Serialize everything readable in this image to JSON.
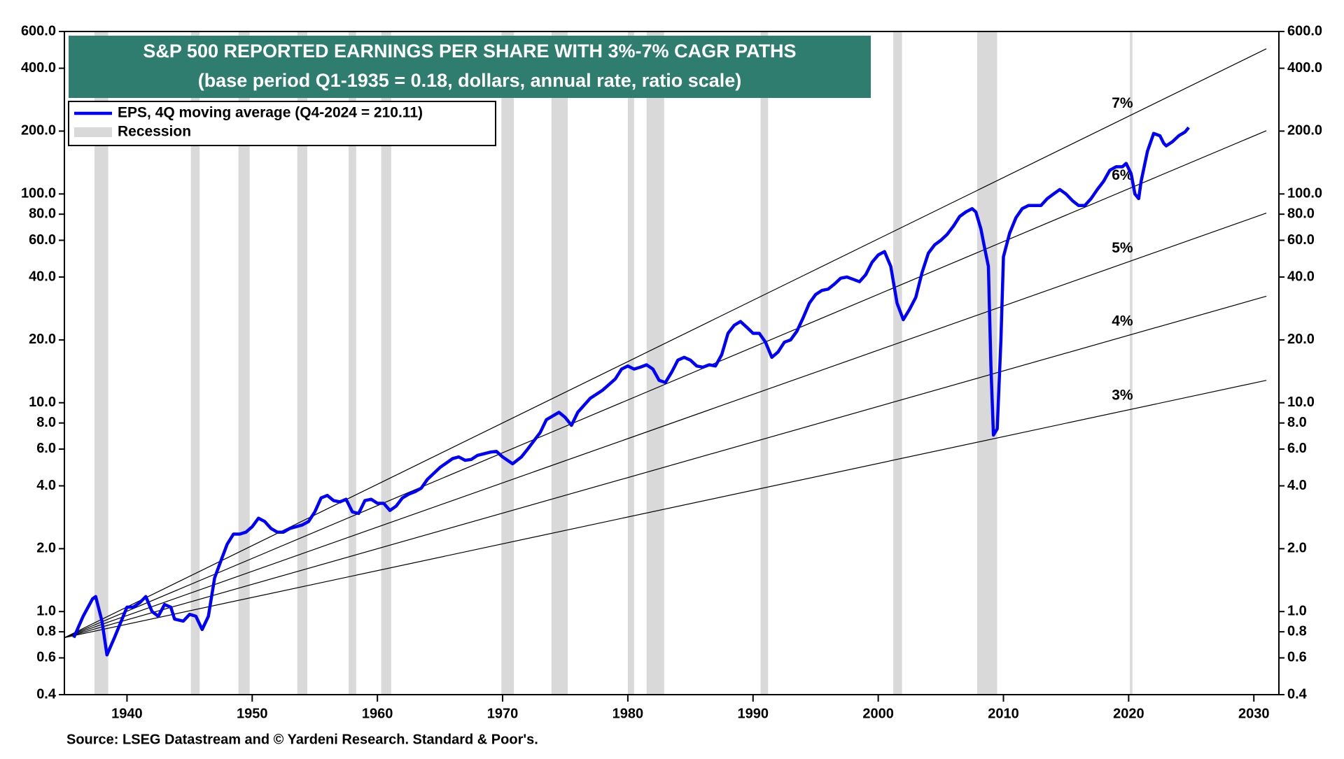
{
  "chart_data": {
    "type": "line",
    "title": "S&P 500 REPORTED EARNINGS PER SHARE WITH 3%-7% CAGR PATHS",
    "subtitle": "(base period Q1-1935 = 0.18, dollars, annual rate, ratio scale)",
    "source": "Source: LSEG Datastream and © Yardeni Research. Standard & Poor's.",
    "log_scale": true,
    "xlim": [
      1935,
      2032
    ],
    "xticks": [
      1940,
      1950,
      1960,
      1970,
      1980,
      1990,
      2000,
      2010,
      2020,
      2030
    ],
    "ylim": [
      0.4,
      600
    ],
    "yticks": [
      0.4,
      0.6,
      0.8,
      {
        "value": 1,
        "label": "1.0"
      },
      {
        "value": 2,
        "label": "2.0"
      },
      {
        "value": 4,
        "label": "4.0"
      },
      {
        "value": 6,
        "label": "6.0"
      },
      {
        "value": 8,
        "label": "8.0"
      },
      {
        "value": 10,
        "label": "10.0"
      },
      {
        "value": 20,
        "label": "20.0"
      },
      {
        "value": 40,
        "label": "40.0"
      },
      {
        "value": 60,
        "label": "60.0"
      },
      {
        "value": 80,
        "label": "80.0"
      },
      {
        "value": 100,
        "label": "100.0"
      },
      {
        "value": 200,
        "label": "200.0"
      },
      {
        "value": 400,
        "label": "400.0"
      },
      {
        "value": 600,
        "label": "600.0"
      }
    ],
    "recession_label": "Recession",
    "recession_color": "#d9d9d9",
    "recessions": [
      [
        1937.4,
        1938.5
      ],
      [
        1945.1,
        1945.8
      ],
      [
        1948.9,
        1949.8
      ],
      [
        1953.6,
        1954.4
      ],
      [
        1957.7,
        1958.3
      ],
      [
        1960.3,
        1961.1
      ],
      [
        1969.9,
        1970.9
      ],
      [
        1973.9,
        1975.2
      ],
      [
        1980.0,
        1980.5
      ],
      [
        1981.5,
        1982.9
      ],
      [
        1990.6,
        1991.2
      ],
      [
        2001.2,
        2001.9
      ],
      [
        2007.9,
        2009.5
      ],
      [
        2020.1,
        2020.3
      ]
    ],
    "series": [
      {
        "name": "EPS, 4Q moving average (Q4-2024 = 210.11)",
        "color": "#0000ff",
        "legend": true,
        "x": [
          1935.75,
          1936.5,
          1937.25,
          1937.5,
          1938.0,
          1938.4,
          1939.0,
          1940.0,
          1940.5,
          1941.0,
          1941.5,
          1942.0,
          1942.5,
          1943.0,
          1943.5,
          1943.8,
          1944.5,
          1945.0,
          1945.5,
          1946.0,
          1946.5,
          1947.0,
          1947.5,
          1948.0,
          1948.5,
          1949.0,
          1949.5,
          1950.0,
          1950.5,
          1951.0,
          1951.5,
          1952.0,
          1952.5,
          1953.0,
          1953.5,
          1954.0,
          1954.5,
          1955.0,
          1955.5,
          1956.0,
          1956.5,
          1957.0,
          1957.5,
          1958.0,
          1958.5,
          1959.0,
          1959.5,
          1960.0,
          1960.5,
          1961.0,
          1961.5,
          1962.0,
          1962.5,
          1963.0,
          1963.5,
          1964.0,
          1965.0,
          1966.0,
          1966.5,
          1967.0,
          1967.5,
          1968.0,
          1969.0,
          1969.5,
          1970.0,
          1970.8,
          1971.5,
          1972.0,
          1973.0,
          1973.5,
          1974.5,
          1975.0,
          1975.5,
          1976.0,
          1977.0,
          1978.0,
          1979.0,
          1979.5,
          1980.0,
          1980.5,
          1981.0,
          1981.5,
          1982.0,
          1982.5,
          1983.0,
          1983.5,
          1984.0,
          1984.5,
          1985.0,
          1985.5,
          1986.0,
          1986.5,
          1987.0,
          1987.5,
          1988.0,
          1988.5,
          1989.0,
          1989.5,
          1990.0,
          1990.5,
          1991.0,
          1991.5,
          1992.0,
          1992.5,
          1993.0,
          1993.5,
          1994.0,
          1994.5,
          1995.0,
          1995.5,
          1996.0,
          1996.5,
          1997.0,
          1997.5,
          1998.0,
          1998.5,
          1999.0,
          1999.5,
          2000.0,
          2000.5,
          2001.0,
          2001.5,
          2002.0,
          2002.5,
          2003.0,
          2003.5,
          2004.0,
          2004.5,
          2005.0,
          2005.5,
          2006.0,
          2006.5,
          2007.0,
          2007.5,
          2007.8,
          2008.2,
          2008.5,
          2008.8,
          2009.0,
          2009.2,
          2009.5,
          2009.8,
          2010.0,
          2010.5,
          2011.0,
          2011.5,
          2012.0,
          2012.5,
          2013.0,
          2013.5,
          2014.0,
          2014.5,
          2015.0,
          2015.5,
          2016.0,
          2016.5,
          2017.0,
          2017.5,
          2018.0,
          2018.5,
          2019.0,
          2019.5,
          2019.8,
          2020.2,
          2020.5,
          2020.8,
          2021.0,
          2021.5,
          2022.0,
          2022.5,
          2022.8,
          2023.0,
          2023.5,
          2024.0,
          2024.5,
          2024.8
        ],
        "values": [
          0.75,
          0.95,
          1.15,
          1.18,
          0.9,
          0.62,
          0.75,
          1.05,
          1.05,
          1.1,
          1.18,
          1.0,
          0.95,
          1.08,
          1.05,
          0.92,
          0.9,
          0.97,
          0.95,
          0.82,
          0.95,
          1.45,
          1.75,
          2.1,
          2.35,
          2.35,
          2.4,
          2.55,
          2.8,
          2.7,
          2.5,
          2.4,
          2.4,
          2.5,
          2.55,
          2.6,
          2.7,
          3.0,
          3.5,
          3.6,
          3.4,
          3.35,
          3.45,
          3.0,
          2.95,
          3.4,
          3.45,
          3.3,
          3.3,
          3.05,
          3.2,
          3.5,
          3.65,
          3.75,
          3.9,
          4.3,
          4.9,
          5.4,
          5.5,
          5.3,
          5.35,
          5.6,
          5.8,
          5.85,
          5.5,
          5.1,
          5.5,
          6.0,
          7.2,
          8.3,
          9.0,
          8.5,
          7.8,
          9.0,
          10.5,
          11.5,
          13.0,
          14.5,
          15.0,
          14.5,
          14.8,
          15.2,
          14.5,
          12.8,
          12.5,
          14.0,
          16.0,
          16.5,
          16.0,
          15.0,
          14.8,
          15.2,
          15.0,
          17.0,
          21.5,
          23.5,
          24.5,
          23.0,
          21.5,
          21.5,
          19.5,
          16.5,
          17.5,
          19.5,
          20.0,
          22.0,
          25.5,
          30.0,
          33.0,
          34.5,
          35.0,
          37.0,
          39.5,
          40.0,
          39.0,
          38.0,
          41.0,
          47.0,
          51.0,
          53.0,
          45.0,
          30.0,
          25.0,
          28.0,
          32.0,
          42.0,
          52.0,
          57.0,
          60.0,
          64.0,
          70.0,
          78.0,
          82.0,
          85.0,
          82.0,
          68.0,
          55.0,
          45.0,
          15.0,
          7.0,
          7.5,
          20.0,
          50.0,
          65.0,
          77.0,
          85.0,
          88.0,
          88.0,
          88.0,
          95.0,
          100.0,
          105.0,
          100.0,
          93.0,
          88.0,
          88.0,
          95.0,
          105.0,
          115.0,
          130.0,
          135.0,
          135.0,
          140.0,
          125.0,
          100.0,
          95.0,
          115.0,
          160.0,
          195.0,
          190.0,
          175.0,
          170.0,
          178.0,
          190.0,
          198.0,
          208.0
        ]
      },
      {
        "name": "7%",
        "color": "#000000",
        "x": [
          1935,
          2031
        ],
        "values": [
          0.75,
          496
        ]
      },
      {
        "name": "6%",
        "color": "#000000",
        "x": [
          1935,
          2031
        ],
        "values": [
          0.75,
          201
        ]
      },
      {
        "name": "5%",
        "color": "#000000",
        "x": [
          1935,
          2031
        ],
        "values": [
          0.75,
          81
        ]
      },
      {
        "name": "4%",
        "color": "#000000",
        "x": [
          1935,
          2031
        ],
        "values": [
          0.75,
          32.4
        ]
      },
      {
        "name": "3%",
        "color": "#000000",
        "x": [
          1935,
          2031
        ],
        "values": [
          0.75,
          12.8
        ]
      }
    ]
  }
}
